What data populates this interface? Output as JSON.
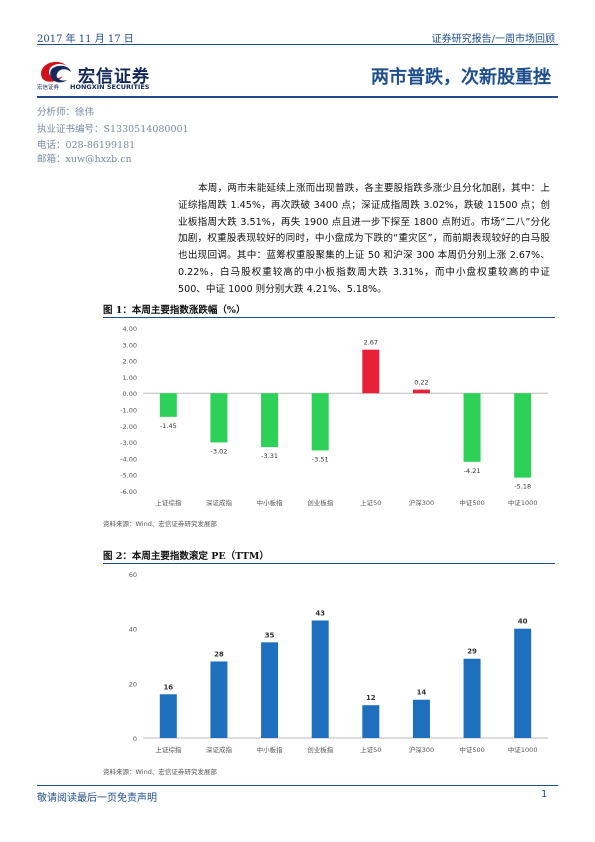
{
  "header": {
    "date": "2017 年 11 月 17 日",
    "report_type": "证券研究报告/一周市场回顾"
  },
  "brand": {
    "name": "宏信证券",
    "name_small": "宏信证券",
    "name_en": "HONGXIN SECURITIES",
    "primary_color": "#14285a",
    "accent_color": "#d0121b",
    "icon": "swirl-logo-icon"
  },
  "title": "两市普跌，次新股重挫",
  "analyst": {
    "name_line": "分析师：徐伟",
    "license_line": "执业证书编号：S1330514080001",
    "phone_line": "电话：028-86199181",
    "email_line": "邮箱：xuw@hxzb.cn"
  },
  "summary": "本周，两市未能延续上涨而出现普跌，各主要股指跌多涨少且分化加剧，其中：上证综指周跌 1.45%，再次跌破 3400 点；深证成指周跌 3.02%，跌破 11500 点；创业板指周大跌 3.51%，再失 1900 点且进一步下探至 1800 点附近。市场“二八”分化加剧，权重股表现较好的同时，中小盘成为下跌的“重灾区”，而前期表现较好的白马股也出现回调。其中：蓝筹权重股聚集的上证 50 和沪深 300 本周仍分别上涨 2.67%、0.22%，白马股权重较高的中小板指数周大跌 3.31%，而中小盘权重较高的中证 500、中证 1000 则分别大跌 4.21%、5.18%。",
  "figure1": {
    "title": "图 1：本周主要指数涨跌幅（%）",
    "source": "资料来源：Wind、宏信证券研究发展部"
  },
  "figure2": {
    "title": "图 2：本周主要指数滚定 PE（TTM）",
    "source": "资料来源：Wind、宏信证券研究发展部"
  },
  "chart_data": [
    {
      "type": "bar",
      "categories": [
        "上证综指",
        "深证成指",
        "中小板指",
        "创业板指",
        "上证50",
        "沪深300",
        "中证500",
        "中证1000"
      ],
      "values": [
        -1.45,
        -3.02,
        -3.31,
        -3.51,
        2.67,
        0.22,
        -4.21,
        -5.18
      ],
      "value_labels": [
        "-1.45",
        "-3.02",
        "-3.31",
        "-3.51",
        "2.67",
        "0.22",
        "-4.21",
        "-5.18"
      ],
      "ylim": [
        -6,
        4
      ],
      "yticks": [
        "4.00",
        "3.00",
        "2.00",
        "1.00",
        "0.00",
        "-1.00",
        "-2.00",
        "-3.00",
        "-4.00",
        "-5.00",
        "-6.00"
      ],
      "colors": {
        "negative": "#2ed158",
        "positive": "#e8203a"
      },
      "grid": false,
      "title": "",
      "xlabel": "",
      "ylabel": ""
    },
    {
      "type": "bar",
      "categories": [
        "上证综指",
        "深证成指",
        "中小板指",
        "创业板指",
        "上证50",
        "沪深300",
        "中证500",
        "中证1000"
      ],
      "values": [
        16,
        28,
        35,
        43,
        12,
        14,
        29,
        40
      ],
      "value_labels": [
        "16",
        "28",
        "35",
        "43",
        "12",
        "14",
        "29",
        "40"
      ],
      "ylim": [
        0,
        60
      ],
      "yticks": [
        "60",
        "40",
        "20",
        "0"
      ],
      "colors": {
        "bar": "#1f6fbf"
      },
      "grid": false,
      "title": "",
      "xlabel": "",
      "ylabel": ""
    }
  ],
  "footer": {
    "disclaimer": "敬请阅读最后一页免责声明",
    "page": "1"
  }
}
